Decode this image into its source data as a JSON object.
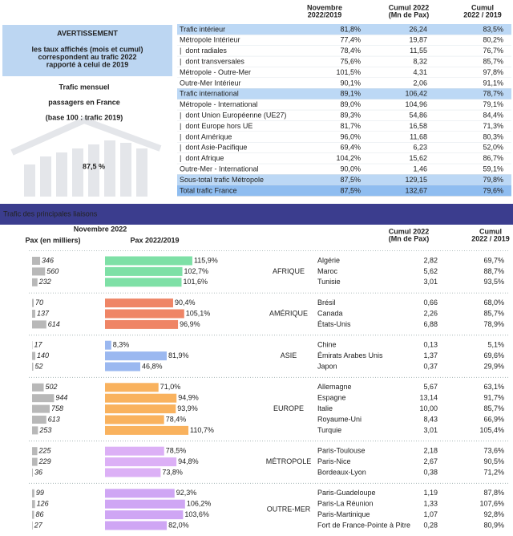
{
  "header": {
    "warning_title": "AVERTISSEMENT",
    "warning_lines": [
      "les taux affichés (mois et cumul)",
      "correspondent au trafic 2022",
      "rapporté à celui de 2019"
    ],
    "title_lines": [
      "Trafic mensuel",
      "passagers en France",
      "(base 100 : trafic 2019)"
    ],
    "kpi": "87,5 %"
  },
  "summary_table": {
    "columns": [
      [
        "Novembre",
        "2022/2019"
      ],
      [
        "Cumul 2022",
        "(Mn de Pax)"
      ],
      [
        "Cumul",
        "2022 / 2019"
      ]
    ],
    "rows": [
      {
        "label": "Trafic intérieur",
        "nov": "81,8%",
        "cumul": "26,24",
        "cumul_ratio": "83,5%",
        "style": "section"
      },
      {
        "label": "Métropole Intérieur",
        "nov": "77,4%",
        "cumul": "19,87",
        "cumul_ratio": "80,2%",
        "style": "plain"
      },
      {
        "label": "|  dont radiales",
        "nov": "78,4%",
        "cumul": "11,55",
        "cumul_ratio": "76,7%",
        "style": "plain"
      },
      {
        "label": "|  dont transversales",
        "nov": "75,6%",
        "cumul": "8,32",
        "cumul_ratio": "85,7%",
        "style": "plain"
      },
      {
        "label": "Métropole - Outre-Mer",
        "nov": "101,5%",
        "cumul": "4,31",
        "cumul_ratio": "97,8%",
        "style": "plain"
      },
      {
        "label": "Outre-Mer Intérieur",
        "nov": "90,1%",
        "cumul": "2,06",
        "cumul_ratio": "91,1%",
        "style": "plain"
      },
      {
        "label": "Trafic international",
        "nov": "89,1%",
        "cumul": "106,42",
        "cumul_ratio": "78,7%",
        "style": "section"
      },
      {
        "label": "Métropole - International",
        "nov": "89,0%",
        "cumul": "104,96",
        "cumul_ratio": "79,1%",
        "style": "plain"
      },
      {
        "label": "|  dont Union Européenne (UE27)",
        "nov": "89,3%",
        "cumul": "54,86",
        "cumul_ratio": "84,4%",
        "style": "plain"
      },
      {
        "label": "|  dont Europe hors UE",
        "nov": "81,7%",
        "cumul": "16,58",
        "cumul_ratio": "71,3%",
        "style": "plain"
      },
      {
        "label": "|  dont Amérique",
        "nov": "96,0%",
        "cumul": "11,68",
        "cumul_ratio": "80,3%",
        "style": "plain"
      },
      {
        "label": "|  dont Asie-Pacifique",
        "nov": "69,4%",
        "cumul": "6,23",
        "cumul_ratio": "52,0%",
        "style": "plain"
      },
      {
        "label": "|  dont Afrique",
        "nov": "104,2%",
        "cumul": "15,62",
        "cumul_ratio": "86,7%",
        "style": "plain"
      },
      {
        "label": "Outre-Mer - International",
        "nov": "90,0%",
        "cumul": "1,46",
        "cumul_ratio": "59,1%",
        "style": "plain"
      },
      {
        "label": "Sous-total trafic Métropole",
        "nov": "87,5%",
        "cumul": "129,15",
        "cumul_ratio": "79,8%",
        "style": "section"
      },
      {
        "label": "Total trafic France",
        "nov": "87,5%",
        "cumul": "132,67",
        "cumul_ratio": "79,6%",
        "style": "total"
      }
    ]
  },
  "routes_section": {
    "title": "Trafic des principales liaisons",
    "head_month": "Novembre 2022",
    "head_pax": "Pax (en milliers)",
    "head_ratio": "Pax 2022/2019",
    "head_cumul": [
      "Cumul 2022",
      "(Mn de Pax)"
    ],
    "head_cumul_ratio": [
      "Cumul",
      "2022 / 2019"
    ],
    "groups": [
      {
        "region": "AFRIQUE",
        "text_color": "#2fb56a",
        "bar_color": "#7ee0a6",
        "routes": [
          {
            "name": "Algérie",
            "pax": 346,
            "ratio": 115.9,
            "ratio_label": "115,9%",
            "cumul": "2,82",
            "cumul_ratio": "69,7%"
          },
          {
            "name": "Maroc",
            "pax": 560,
            "ratio": 102.7,
            "ratio_label": "102,7%",
            "cumul": "5,62",
            "cumul_ratio": "88,7%"
          },
          {
            "name": "Tunisie",
            "pax": 232,
            "ratio": 101.6,
            "ratio_label": "101,6%",
            "cumul": "3,01",
            "cumul_ratio": "93,5%"
          }
        ]
      },
      {
        "region": "AMÉRIQUE",
        "text_color": "#e0582f",
        "bar_color": "#ef8566",
        "routes": [
          {
            "name": "Brésil",
            "pax": 70,
            "ratio": 90.4,
            "ratio_label": "90,4%",
            "cumul": "0,66",
            "cumul_ratio": "68,0%"
          },
          {
            "name": "Canada",
            "pax": 137,
            "ratio": 105.1,
            "ratio_label": "105,1%",
            "cumul": "2,26",
            "cumul_ratio": "85,7%"
          },
          {
            "name": "États-Unis",
            "pax": 614,
            "ratio": 96.9,
            "ratio_label": "96,9%",
            "cumul": "6,88",
            "cumul_ratio": "78,9%"
          }
        ]
      },
      {
        "region": "ASIE",
        "text_color": "#3568d4",
        "bar_color": "#9bb8f0",
        "routes": [
          {
            "name": "Chine",
            "pax": 17,
            "ratio": 8.3,
            "ratio_label": "8,3%",
            "cumul": "0,13",
            "cumul_ratio": "5,1%"
          },
          {
            "name": "Émirats Arabes Unis",
            "pax": 140,
            "ratio": 81.9,
            "ratio_label": "81,9%",
            "cumul": "1,37",
            "cumul_ratio": "69,6%"
          },
          {
            "name": "Japon",
            "pax": 52,
            "ratio": 46.8,
            "ratio_label": "46,8%",
            "cumul": "0,37",
            "cumul_ratio": "29,9%"
          }
        ]
      },
      {
        "region": "EUROPE",
        "text_color": "#f09a30",
        "bar_color": "#f9b25e",
        "routes": [
          {
            "name": "Allemagne",
            "pax": 502,
            "ratio": 71.0,
            "ratio_label": "71,0%",
            "cumul": "5,67",
            "cumul_ratio": "63,1%"
          },
          {
            "name": "Espagne",
            "pax": 944,
            "ratio": 94.9,
            "ratio_label": "94,9%",
            "cumul": "13,14",
            "cumul_ratio": "91,7%"
          },
          {
            "name": "Italie",
            "pax": 758,
            "ratio": 93.9,
            "ratio_label": "93,9%",
            "cumul": "10,00",
            "cumul_ratio": "85,7%"
          },
          {
            "name": "Royaume-Uni",
            "pax": 613,
            "ratio": 78.4,
            "ratio_label": "78,4%",
            "cumul": "8,43",
            "cumul_ratio": "66,9%"
          },
          {
            "name": "Turquie",
            "pax": 253,
            "ratio": 110.7,
            "ratio_label": "110,7%",
            "cumul": "3,01",
            "cumul_ratio": "105,4%"
          }
        ]
      },
      {
        "region": "MÉTROPOLE",
        "text_color": "#b35ee0",
        "bar_color": "#dcb0f6",
        "routes": [
          {
            "name": "Paris-Toulouse",
            "pax": 225,
            "ratio": 78.5,
            "ratio_label": "78,5%",
            "cumul": "2,18",
            "cumul_ratio": "73,6%"
          },
          {
            "name": "Paris-Nice",
            "pax": 229,
            "ratio": 94.8,
            "ratio_label": "94,8%",
            "cumul": "2,67",
            "cumul_ratio": "90,5%"
          },
          {
            "name": "Bordeaux-Lyon",
            "pax": 36,
            "ratio": 73.8,
            "ratio_label": "73,8%",
            "cumul": "0,38",
            "cumul_ratio": "71,2%"
          }
        ]
      },
      {
        "region": "OUTRE-MER",
        "text_color": "#a855e0",
        "bar_color": "#cfa6f4",
        "routes": [
          {
            "name": "Paris-Guadeloupe",
            "pax": 99,
            "ratio": 92.3,
            "ratio_label": "92,3%",
            "cumul": "1,19",
            "cumul_ratio": "87,8%"
          },
          {
            "name": "Paris-La Réunion",
            "pax": 126,
            "ratio": 106.2,
            "ratio_label": "106,2%",
            "cumul": "1,33",
            "cumul_ratio": "107,6%"
          },
          {
            "name": "Paris-Martinique",
            "pax": 86,
            "ratio": 103.6,
            "ratio_label": "103,6%",
            "cumul": "1,07",
            "cumul_ratio": "92,8%"
          },
          {
            "name": "Fort de France-Pointe à Pitre",
            "pax": 27,
            "ratio": 82.0,
            "ratio_label": "82,0%",
            "cumul": "0,28",
            "cumul_ratio": "80,9%"
          }
        ]
      }
    ]
  }
}
